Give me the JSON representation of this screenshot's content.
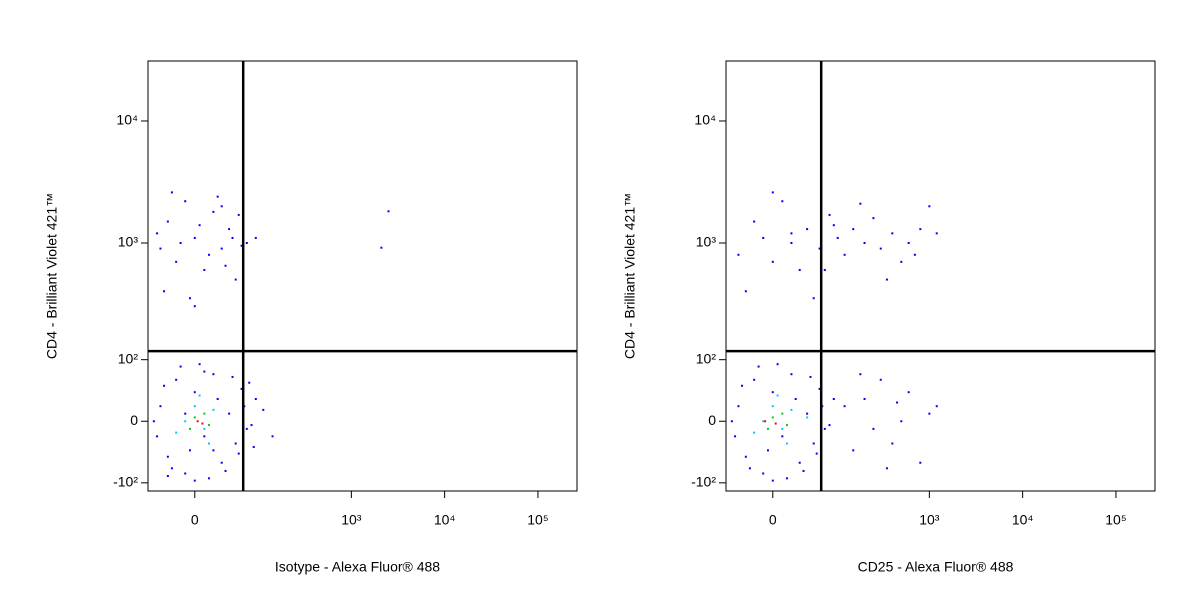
{
  "chart_data": [
    {
      "type": "scatter",
      "x_label": "Isotype - Alexa Fluor® 488",
      "y_label": "CD4 - Brilliant Violet 421™",
      "xscale": "biexponential",
      "yscale": "biexponential",
      "xlim": [
        -60,
        262144
      ],
      "ylim": [
        -120,
        31000
      ],
      "xticks": [
        0,
        {
          "value": 1000,
          "label": "10³"
        },
        {
          "value": 10000,
          "label": "10⁴"
        },
        {
          "value": 100000,
          "label": "10⁵"
        }
      ],
      "yticks": [
        {
          "value": -100,
          "label": "-10²"
        },
        0,
        {
          "value": 100,
          "label": "10²"
        },
        {
          "value": 1000,
          "label": "10³"
        },
        {
          "value": 10000,
          "label": "10⁴"
        }
      ],
      "gates": {
        "x": 63,
        "y": 121
      },
      "series": [
        {
          "color": "#0000ff",
          "x": [
            -40,
            -30,
            -20,
            -10,
            0,
            10,
            20,
            30,
            40,
            50,
            60,
            70,
            -45,
            -35,
            -25,
            -15,
            -5,
            5,
            15,
            25,
            35,
            45,
            55,
            65,
            80,
            90,
            -50,
            0,
            20,
            -10,
            75,
            85,
            110,
            140,
            -30,
            10,
            -40,
            -30,
            -20,
            -10,
            0,
            10,
            20,
            30,
            40,
            50,
            -35,
            -25,
            -15,
            -5,
            5,
            15,
            25,
            35,
            45,
            55,
            60,
            -45,
            0,
            30,
            70,
            90,
            2500,
            2100
          ],
          "y": [
            20,
            -50,
            60,
            -80,
            40,
            -20,
            70,
            -60,
            10,
            -30,
            45,
            -10,
            -20,
            50,
            -70,
            85,
            -40,
            90,
            -90,
            30,
            -75,
            65,
            -45,
            20,
            -5,
            30,
            0,
            -95,
            -40,
            10,
            55,
            -35,
            15,
            -20,
            -85,
            75,
            900,
            1500,
            700,
            2200,
            1100,
            600,
            1800,
            900,
            1300,
            500,
            400,
            2600,
            1000,
            350,
            1400,
            800,
            2400,
            650,
            1100,
            1700,
            950,
            1200,
            300,
            2000,
            1000,
            1100,
            1820,
            915
          ]
        },
        {
          "color": "#00c8ff",
          "x": [
            -10,
            0,
            10,
            20,
            -20,
            5,
            15
          ],
          "y": [
            0,
            20,
            -10,
            15,
            -15,
            35,
            -30
          ]
        },
        {
          "color": "#00d000",
          "x": [
            0,
            10,
            -5,
            15
          ],
          "y": [
            5,
            10,
            -10,
            -5
          ]
        },
        {
          "color": "#ff0000",
          "x": [
            3,
            8
          ],
          "y": [
            0,
            -3
          ]
        }
      ]
    },
    {
      "type": "scatter",
      "x_label": "CD25 - Alexa Fluor® 488",
      "y_label": "CD4 - Brilliant Violet 421™",
      "xscale": "biexponential",
      "yscale": "biexponential",
      "xlim": [
        -60,
        262144
      ],
      "ylim": [
        -120,
        31000
      ],
      "xticks": [
        0,
        {
          "value": 1000,
          "label": "10³"
        },
        {
          "value": 10000,
          "label": "10⁴"
        },
        {
          "value": 100000,
          "label": "10⁵"
        }
      ],
      "yticks": [
        {
          "value": -100,
          "label": "-10²"
        },
        0,
        {
          "value": 100,
          "label": "10²"
        },
        {
          "value": 1000,
          "label": "10³"
        },
        {
          "value": 10000,
          "label": "10⁴"
        }
      ],
      "gates": {
        "x": 63,
        "y": 121
      },
      "series": [
        {
          "color": "#0000ff",
          "x": [
            -40,
            -30,
            -20,
            -10,
            0,
            10,
            20,
            30,
            40,
            50,
            60,
            70,
            -45,
            -35,
            -25,
            -15,
            -5,
            5,
            15,
            25,
            35,
            45,
            55,
            65,
            80,
            90,
            -50,
            0,
            120,
            150,
            200,
            250,
            300,
            400,
            500,
            600,
            800,
            1000,
            1200,
            350,
            180,
            450,
            -40,
            -20,
            0,
            10,
            20,
            30,
            40,
            60,
            80,
            100,
            120,
            150,
            200,
            250,
            300,
            400,
            500,
            600,
            800,
            1000,
            1200,
            -30,
            0,
            50,
            180,
            350,
            700,
            -10,
            20,
            70,
            90
          ],
          "y": [
            20,
            -50,
            60,
            -80,
            40,
            -20,
            70,
            -60,
            10,
            -30,
            45,
            -10,
            -20,
            50,
            -70,
            85,
            -40,
            90,
            -90,
            30,
            -75,
            65,
            -45,
            20,
            -5,
            30,
            0,
            -95,
            20,
            -40,
            30,
            -10,
            60,
            -30,
            0,
            40,
            -60,
            10,
            20,
            -70,
            70,
            25,
            800,
            1500,
            700,
            2200,
            1000,
            600,
            1300,
            900,
            1700,
            1100,
            800,
            1300,
            1000,
            1600,
            900,
            1200,
            700,
            1000,
            1300,
            2000,
            1200,
            400,
            2600,
            350,
            2100,
            500,
            800,
            1100,
            1200,
            600,
            1400
          ]
        },
        {
          "color": "#00c8ff",
          "x": [
            -10,
            0,
            10,
            20,
            -20,
            5,
            15,
            40
          ],
          "y": [
            0,
            20,
            -10,
            15,
            -15,
            35,
            -30,
            5
          ]
        },
        {
          "color": "#00d000",
          "x": [
            0,
            10,
            -5,
            15
          ],
          "y": [
            5,
            10,
            -10,
            -5
          ]
        },
        {
          "color": "#ff0000",
          "x": [
            -8,
            3
          ],
          "y": [
            0,
            -3
          ]
        }
      ]
    }
  ]
}
